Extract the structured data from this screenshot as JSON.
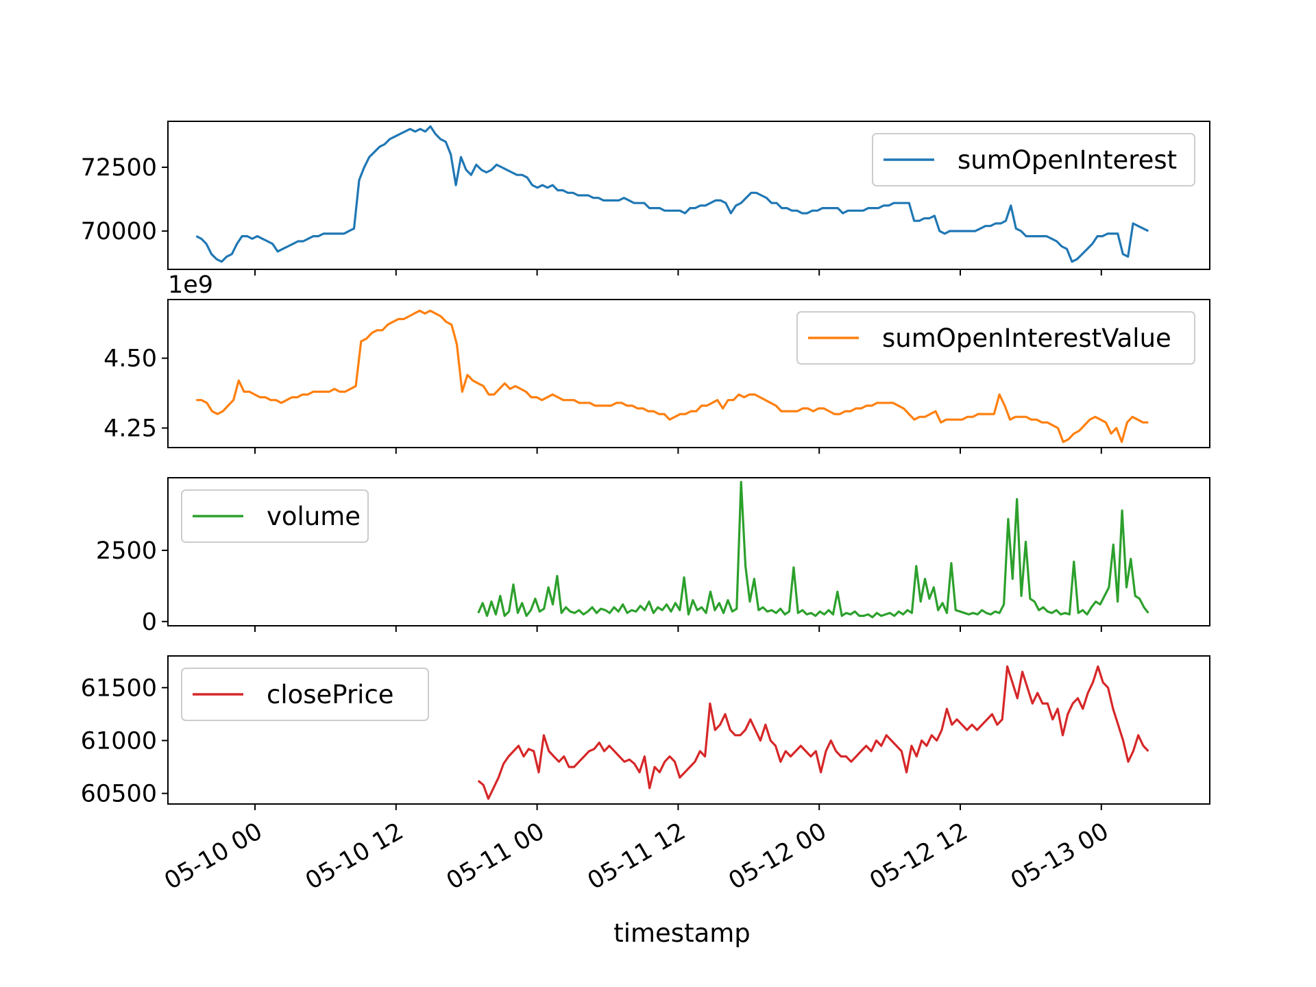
{
  "chart_data": {
    "type": "line",
    "xlabel": "timestamp",
    "x_tick_labels": [
      "05-10 00",
      "05-10 12",
      "05-11 00",
      "05-11 12",
      "05-12 00",
      "05-12 12",
      "05-13 00"
    ],
    "subplots": [
      {
        "name": "sumOpenInterest",
        "color": "#1f77b4",
        "legend": "top-right",
        "offset_label": "",
        "y_ticks": [
          {
            "value": 70000,
            "label": "70000"
          },
          {
            "value": 72500,
            "label": "72500"
          }
        ],
        "ylim": [
          68500,
          74300
        ],
        "x_span_hours": [
          -5,
          76
        ],
        "values": [
          69800,
          69700,
          69500,
          69100,
          68900,
          68800,
          69000,
          69100,
          69500,
          69800,
          69800,
          69700,
          69800,
          69700,
          69600,
          69500,
          69200,
          69300,
          69400,
          69500,
          69600,
          69600,
          69700,
          69800,
          69800,
          69900,
          69900,
          69900,
          69900,
          69900,
          70000,
          70100,
          72000,
          72500,
          72900,
          73100,
          73300,
          73400,
          73600,
          73700,
          73800,
          73900,
          74000,
          73900,
          74000,
          73900,
          74100,
          73800,
          73600,
          73500,
          73000,
          71800,
          72900,
          72400,
          72200,
          72600,
          72400,
          72300,
          72400,
          72600,
          72500,
          72400,
          72300,
          72200,
          72200,
          72100,
          71800,
          71700,
          71800,
          71700,
          71800,
          71600,
          71600,
          71500,
          71500,
          71400,
          71400,
          71400,
          71300,
          71300,
          71200,
          71200,
          71200,
          71200,
          71300,
          71200,
          71100,
          71100,
          71100,
          70900,
          70900,
          70900,
          70800,
          70800,
          70800,
          70800,
          70700,
          70900,
          70900,
          71000,
          71000,
          71100,
          71200,
          71200,
          71100,
          70700,
          71000,
          71100,
          71300,
          71500,
          71500,
          71400,
          71300,
          71100,
          71100,
          70900,
          70900,
          70800,
          70800,
          70700,
          70700,
          70800,
          70800,
          70900,
          70900,
          70900,
          70900,
          70700,
          70800,
          70800,
          70800,
          70800,
          70900,
          70900,
          70900,
          71000,
          71000,
          71100,
          71100,
          71100,
          71100,
          70400,
          70400,
          70500,
          70500,
          70600,
          70000,
          69900,
          70000,
          70000,
          70000,
          70000,
          70000,
          70000,
          70100,
          70200,
          70200,
          70300,
          70300,
          70400,
          71000,
          70100,
          70000,
          69800,
          69800,
          69800,
          69800,
          69800,
          69700,
          69600,
          69400,
          69300,
          68800,
          68900,
          69100,
          69300,
          69500,
          69800,
          69800,
          69900,
          69900,
          69900,
          69100,
          69000,
          70300,
          70200,
          70100,
          70000
        ]
      },
      {
        "name": "sumOpenInterestValue",
        "color": "#ff7f0e",
        "legend": "top-right",
        "offset_label": "1e9",
        "y_ticks": [
          {
            "value": 4.25,
            "label": "4.25"
          },
          {
            "value": 4.5,
            "label": "4.50"
          }
        ],
        "ylim": [
          4.18,
          4.71
        ],
        "x_span_hours": [
          -5,
          76
        ],
        "values": [
          4.35,
          4.35,
          4.34,
          4.31,
          4.3,
          4.31,
          4.33,
          4.35,
          4.42,
          4.38,
          4.38,
          4.37,
          4.36,
          4.36,
          4.35,
          4.35,
          4.34,
          4.35,
          4.36,
          4.36,
          4.37,
          4.37,
          4.38,
          4.38,
          4.38,
          4.38,
          4.39,
          4.38,
          4.38,
          4.39,
          4.4,
          4.56,
          4.57,
          4.59,
          4.6,
          4.6,
          4.62,
          4.63,
          4.64,
          4.64,
          4.65,
          4.66,
          4.67,
          4.66,
          4.67,
          4.66,
          4.65,
          4.63,
          4.62,
          4.55,
          4.38,
          4.44,
          4.42,
          4.41,
          4.4,
          4.37,
          4.37,
          4.39,
          4.41,
          4.39,
          4.4,
          4.39,
          4.38,
          4.36,
          4.36,
          4.35,
          4.36,
          4.37,
          4.36,
          4.35,
          4.35,
          4.35,
          4.34,
          4.34,
          4.34,
          4.33,
          4.33,
          4.33,
          4.33,
          4.34,
          4.34,
          4.33,
          4.33,
          4.32,
          4.32,
          4.31,
          4.31,
          4.3,
          4.3,
          4.28,
          4.29,
          4.3,
          4.3,
          4.31,
          4.31,
          4.33,
          4.33,
          4.34,
          4.35,
          4.32,
          4.35,
          4.35,
          4.37,
          4.36,
          4.37,
          4.37,
          4.36,
          4.35,
          4.34,
          4.33,
          4.31,
          4.31,
          4.31,
          4.31,
          4.32,
          4.32,
          4.31,
          4.32,
          4.32,
          4.31,
          4.3,
          4.3,
          4.31,
          4.31,
          4.32,
          4.32,
          4.33,
          4.33,
          4.34,
          4.34,
          4.34,
          4.34,
          4.33,
          4.32,
          4.3,
          4.28,
          4.29,
          4.29,
          4.3,
          4.31,
          4.27,
          4.28,
          4.28,
          4.28,
          4.28,
          4.29,
          4.29,
          4.3,
          4.3,
          4.3,
          4.3,
          4.37,
          4.33,
          4.28,
          4.29,
          4.29,
          4.29,
          4.28,
          4.28,
          4.27,
          4.27,
          4.26,
          4.25,
          4.2,
          4.21,
          4.23,
          4.24,
          4.26,
          4.28,
          4.29,
          4.28,
          4.27,
          4.23,
          4.25,
          4.2,
          4.27,
          4.29,
          4.28,
          4.27,
          4.27
        ]
      },
      {
        "name": "volume",
        "color": "#2ca02c",
        "legend": "top-left",
        "offset_label": "",
        "y_ticks": [
          {
            "value": 0,
            "label": "0"
          },
          {
            "value": 2500,
            "label": "2500"
          }
        ],
        "ylim": [
          -150,
          5050
        ],
        "x_span_hours": [
          19,
          76
        ],
        "values": [
          300,
          650,
          200,
          700,
          250,
          900,
          200,
          350,
          1300,
          300,
          650,
          200,
          400,
          800,
          350,
          450,
          1200,
          600,
          1600,
          300,
          500,
          350,
          300,
          400,
          250,
          350,
          500,
          300,
          450,
          400,
          300,
          500,
          350,
          600,
          300,
          400,
          350,
          550,
          400,
          700,
          300,
          500,
          400,
          600,
          350,
          650,
          400,
          1550,
          250,
          750,
          400,
          500,
          300,
          1050,
          400,
          650,
          300,
          750,
          350,
          450,
          4900,
          1950,
          700,
          1500,
          400,
          500,
          350,
          400,
          300,
          450,
          250,
          350,
          1900,
          300,
          400,
          250,
          300,
          200,
          350,
          250,
          400,
          250,
          1050,
          200,
          300,
          250,
          350,
          200,
          200,
          250,
          150,
          300,
          200,
          250,
          300,
          200,
          350,
          250,
          400,
          300,
          1950,
          700,
          1500,
          800,
          1200,
          400,
          650,
          300,
          2050,
          400,
          350,
          300,
          250,
          300,
          250,
          400,
          300,
          250,
          350,
          300,
          600,
          3600,
          1500,
          4300,
          900,
          2800,
          800,
          700,
          400,
          500,
          350,
          300,
          400,
          250,
          300,
          250,
          2100,
          300,
          400,
          250,
          500,
          700,
          600,
          900,
          1200,
          2700,
          700,
          3900,
          1200,
          2200,
          900,
          800,
          500,
          300
        ]
      },
      {
        "name": "closePrice",
        "color": "#d62728",
        "legend": "top-left",
        "offset_label": "",
        "y_ticks": [
          {
            "value": 60500,
            "label": "60500"
          },
          {
            "value": 61000,
            "label": "61000"
          },
          {
            "value": 61500,
            "label": "61500"
          }
        ],
        "ylim": [
          60400,
          61800
        ],
        "x_span_hours": [
          19,
          76
        ],
        "values": [
          60620,
          60580,
          60450,
          60550,
          60650,
          60780,
          60850,
          60900,
          60950,
          60850,
          60920,
          60900,
          60700,
          61050,
          60900,
          60850,
          60800,
          60850,
          60750,
          60750,
          60800,
          60850,
          60900,
          60920,
          60980,
          60900,
          60950,
          60900,
          60850,
          60800,
          60820,
          60780,
          60700,
          60850,
          60550,
          60750,
          60700,
          60800,
          60850,
          60800,
          60650,
          60700,
          60750,
          60800,
          60900,
          60850,
          61350,
          61100,
          61150,
          61250,
          61100,
          61050,
          61050,
          61100,
          61200,
          61100,
          61000,
          61150,
          61000,
          60950,
          60800,
          60900,
          60850,
          60900,
          60950,
          60900,
          60850,
          60900,
          60700,
          60900,
          61000,
          60900,
          60850,
          60850,
          60800,
          60850,
          60900,
          60950,
          60900,
          61000,
          60950,
          61050,
          61000,
          60950,
          60900,
          60700,
          60950,
          60850,
          61000,
          60950,
          61050,
          61000,
          61100,
          61300,
          61150,
          61200,
          61150,
          61100,
          61150,
          61100,
          61150,
          61200,
          61250,
          61150,
          61200,
          61700,
          61550,
          61400,
          61650,
          61500,
          61350,
          61450,
          61350,
          61350,
          61200,
          61300,
          61050,
          61250,
          61350,
          61400,
          61300,
          61450,
          61550,
          61700,
          61550,
          61500,
          61300,
          61150,
          61000,
          60800,
          60900,
          61050,
          60950,
          60900
        ]
      }
    ]
  }
}
